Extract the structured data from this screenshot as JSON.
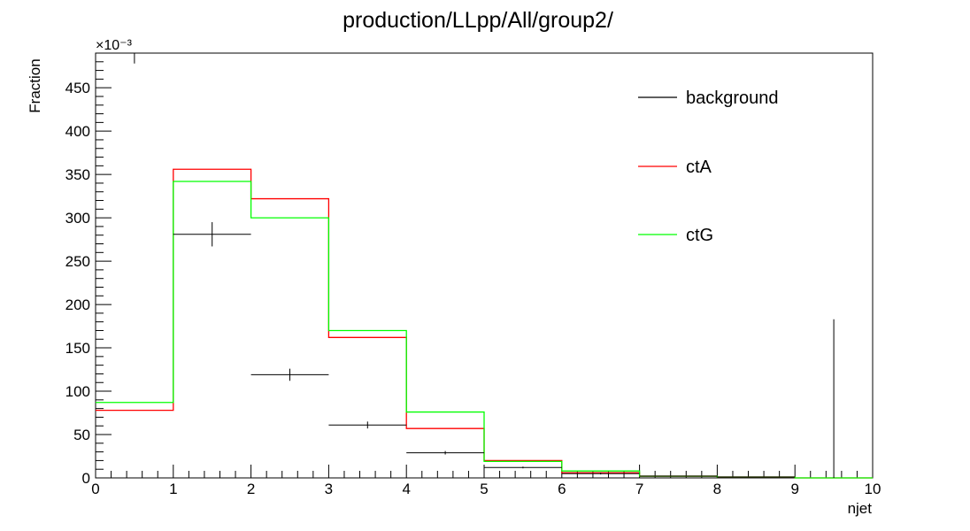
{
  "chart_data": {
    "type": "histogram",
    "title": "production/LLpp/All/group2/",
    "xlabel": "njet",
    "ylabel": "Fraction",
    "y_exponent_label": "×10⁻³",
    "xlim": [
      0,
      10
    ],
    "ylim": [
      0,
      490
    ],
    "x_ticks": [
      0,
      1,
      2,
      3,
      4,
      5,
      6,
      7,
      8,
      9,
      10
    ],
    "y_ticks": [
      0,
      50,
      100,
      150,
      200,
      250,
      300,
      350,
      400,
      450
    ],
    "bin_edges": [
      0,
      1,
      2,
      3,
      4,
      5,
      6,
      7,
      8,
      9,
      10
    ],
    "series": [
      {
        "name": "background",
        "color": "#000000",
        "style": "points-with-errors",
        "values": [
          490,
          281,
          119,
          61,
          29,
          12,
          5,
          2,
          1,
          0
        ],
        "errors": [
          12,
          14,
          7,
          4,
          2,
          1,
          1,
          0.5,
          0.5,
          0
        ]
      },
      {
        "name": "ctA",
        "color": "#ff0000",
        "style": "step",
        "values": [
          78,
          356,
          322,
          162,
          57,
          20,
          6,
          2,
          1,
          0
        ]
      },
      {
        "name": "ctG",
        "color": "#00ff00",
        "style": "step",
        "values": [
          87,
          342,
          300,
          170,
          76,
          19,
          8,
          2,
          1,
          0
        ]
      }
    ],
    "background_extra_error": {
      "x": 9.5,
      "low": 0,
      "high": 183
    },
    "legend_position": "top-right",
    "grid": false
  }
}
